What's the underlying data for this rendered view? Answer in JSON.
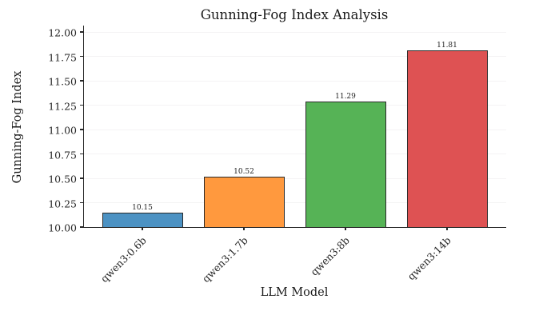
{
  "chart": {
    "title": "Gunning-Fog Index Analysis",
    "xlabel": "LLM Model",
    "ylabel": "Gunning-Fog Index"
  },
  "chart_data": {
    "type": "bar",
    "title": "Gunning-Fog Index Analysis",
    "xlabel": "LLM Model",
    "ylabel": "Gunning-Fog Index",
    "categories": [
      "qwen3:0.6b",
      "qwen3:1.7b",
      "qwen3:8b",
      "qwen3:14b"
    ],
    "values": [
      10.15,
      10.52,
      11.29,
      11.81
    ],
    "value_labels": [
      "10.15",
      "10.52",
      "11.29",
      "11.81"
    ],
    "bar_colors": [
      "#4C92C3",
      "#FF993E",
      "#56B356",
      "#DE5253"
    ],
    "bar_edge_color": "#2A2A2A",
    "ylim": [
      10.0,
      12.07
    ],
    "yticks": [
      10.0,
      10.25,
      10.5,
      10.75,
      11.0,
      11.25,
      11.5,
      11.75,
      12.0
    ],
    "ytick_labels": [
      "10.00",
      "10.25",
      "10.50",
      "10.75",
      "11.00",
      "11.25",
      "11.50",
      "11.75",
      "12.00"
    ],
    "x_tick_rotation_deg": 45,
    "grid": true,
    "grid_color": "#F4F3F4",
    "legend": false
  }
}
